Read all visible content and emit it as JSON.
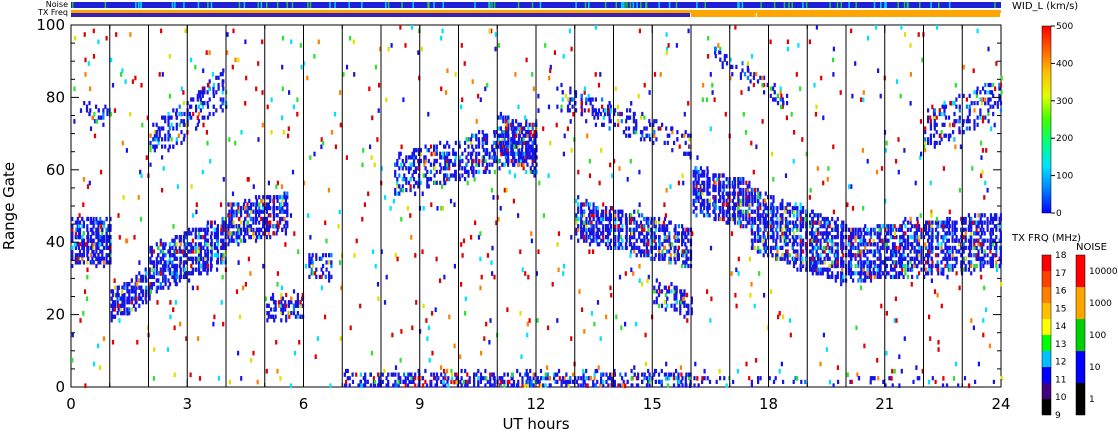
{
  "chart_data": {
    "type": "heatmap",
    "xlabel": "UT hours",
    "ylabel": "Range Gate",
    "xlim": [
      0,
      24
    ],
    "ylim": [
      0,
      100
    ],
    "x_ticks": [
      0,
      3,
      6,
      9,
      12,
      15,
      18,
      21,
      24
    ],
    "x_tick_labels": [
      "0",
      "3",
      "6",
      "9",
      "12",
      "15",
      "18",
      "21",
      "24"
    ],
    "y_ticks": [
      0,
      20,
      40,
      60,
      80,
      100
    ],
    "y_tick_labels": [
      "0",
      "20",
      "40",
      "60",
      "80",
      "100"
    ],
    "hour_markers": [
      1,
      2,
      3,
      4,
      5,
      6,
      7,
      8,
      9,
      10,
      11,
      12,
      13,
      14,
      15,
      16,
      17,
      18,
      19,
      20,
      21,
      22,
      23
    ],
    "top_bars": {
      "noise_label": "Noise",
      "txfreq_label": "TX Freq",
      "noise_color": "#1f1fd8",
      "txfreq_segments": [
        {
          "start": 0,
          "end": 16,
          "color": "#3a1fb0"
        },
        {
          "start": 16,
          "end": 17.7,
          "color": "#ffa500"
        },
        {
          "start": 17.7,
          "end": 24,
          "color": "#ffa500"
        }
      ],
      "txfreq_top_line_color": "#ffa500"
    },
    "colorbars": {
      "velocity": {
        "title": "WID_L (km/s)",
        "range": [
          0,
          500
        ],
        "tick_labels": [
          "500",
          "400",
          "300",
          "200",
          "100",
          "0"
        ],
        "stops": [
          "#0000ff",
          "#0080ff",
          "#00e0ff",
          "#00ff80",
          "#40ff00",
          "#e0ff00",
          "#ffc000",
          "#ff6000",
          "#ff0000"
        ]
      },
      "txfreq": {
        "title": "TX FRQ (MHz)",
        "tick_labels": [
          "18",
          "17",
          "16",
          "15",
          "14",
          "13",
          "12",
          "11",
          "10",
          "9"
        ],
        "colors": [
          "#ff0000",
          "#ff4000",
          "#ff8000",
          "#ffc000",
          "#ffff00",
          "#00ff00",
          "#00c0ff",
          "#0000ff",
          "#400080",
          "#000000"
        ]
      },
      "noise": {
        "title": "NOISE",
        "tick_labels": [
          "10000",
          "1000",
          "100",
          "10",
          "1"
        ],
        "colors": [
          "#ff0000",
          "#ffa500",
          "#00d000",
          "#0000ff",
          "#000000"
        ]
      }
    },
    "scatter_colors": {
      "dominant": "#1515e6",
      "mid": "#0080ff",
      "cyan": "#00e0ff",
      "green": "#30e030",
      "yellow": "#e0e000",
      "orange": "#ff8000",
      "red": "#e00000"
    },
    "echo_bands": [
      {
        "x0": 0.0,
        "x1": 1.0,
        "y_start": 40,
        "y_end": 40,
        "half_width": 6,
        "density": 0.85
      },
      {
        "x0": 1.0,
        "x1": 2.0,
        "y_start": 22,
        "y_end": 28,
        "half_width": 4,
        "density": 0.85
      },
      {
        "x0": 2.0,
        "x1": 4.0,
        "y_start": 32,
        "y_end": 40,
        "half_width": 6,
        "density": 0.8
      },
      {
        "x0": 4.0,
        "x1": 5.6,
        "y_start": 44,
        "y_end": 48,
        "half_width": 5,
        "density": 0.8
      },
      {
        "x0": 0.3,
        "x1": 1.0,
        "y_start": 76,
        "y_end": 74,
        "half_width": 2,
        "density": 0.4
      },
      {
        "x0": 2.0,
        "x1": 4.0,
        "y_start": 66,
        "y_end": 82,
        "half_width": 5,
        "density": 0.35
      },
      {
        "x0": 5.0,
        "x1": 6.0,
        "y_start": 22,
        "y_end": 22,
        "half_width": 3,
        "density": 0.6
      },
      {
        "x0": 6.1,
        "x1": 6.7,
        "y_start": 34,
        "y_end": 32,
        "half_width": 3,
        "density": 0.55
      },
      {
        "x0": 8.3,
        "x1": 12.0,
        "y_start": 58,
        "y_end": 68,
        "half_width": 5,
        "density": 0.55
      },
      {
        "x0": 11.0,
        "x1": 12.0,
        "y_start": 70,
        "y_end": 64,
        "half_width": 6,
        "density": 0.6
      },
      {
        "x0": 13.0,
        "x1": 16.0,
        "y_start": 46,
        "y_end": 38,
        "half_width": 5,
        "density": 0.75
      },
      {
        "x0": 15.0,
        "x1": 16.0,
        "y_start": 26,
        "y_end": 22,
        "half_width": 3,
        "density": 0.5
      },
      {
        "x0": 12.5,
        "x1": 16.0,
        "y_start": 80,
        "y_end": 66,
        "half_width": 3,
        "density": 0.35
      },
      {
        "x0": 16.0,
        "x1": 17.5,
        "y_start": 54,
        "y_end": 50,
        "half_width": 6,
        "density": 0.85
      },
      {
        "x0": 17.5,
        "x1": 20.0,
        "y_start": 46,
        "y_end": 36,
        "half_width": 8,
        "density": 0.75
      },
      {
        "x0": 20.0,
        "x1": 24.0,
        "y_start": 36,
        "y_end": 40,
        "half_width": 7,
        "density": 0.7
      },
      {
        "x0": 16.5,
        "x1": 18.5,
        "y_start": 92,
        "y_end": 78,
        "half_width": 2,
        "density": 0.3
      },
      {
        "x0": 22.0,
        "x1": 24.0,
        "y_start": 70,
        "y_end": 80,
        "half_width": 5,
        "density": 0.35
      },
      {
        "x0": 7.0,
        "x1": 16.0,
        "y_start": 1,
        "y_end": 1,
        "half_width": 2,
        "density": 0.55
      },
      {
        "x0": 16.0,
        "x1": 24.0,
        "y_start": 1,
        "y_end": 1,
        "half_width": 1,
        "density": 0.12
      }
    ]
  }
}
